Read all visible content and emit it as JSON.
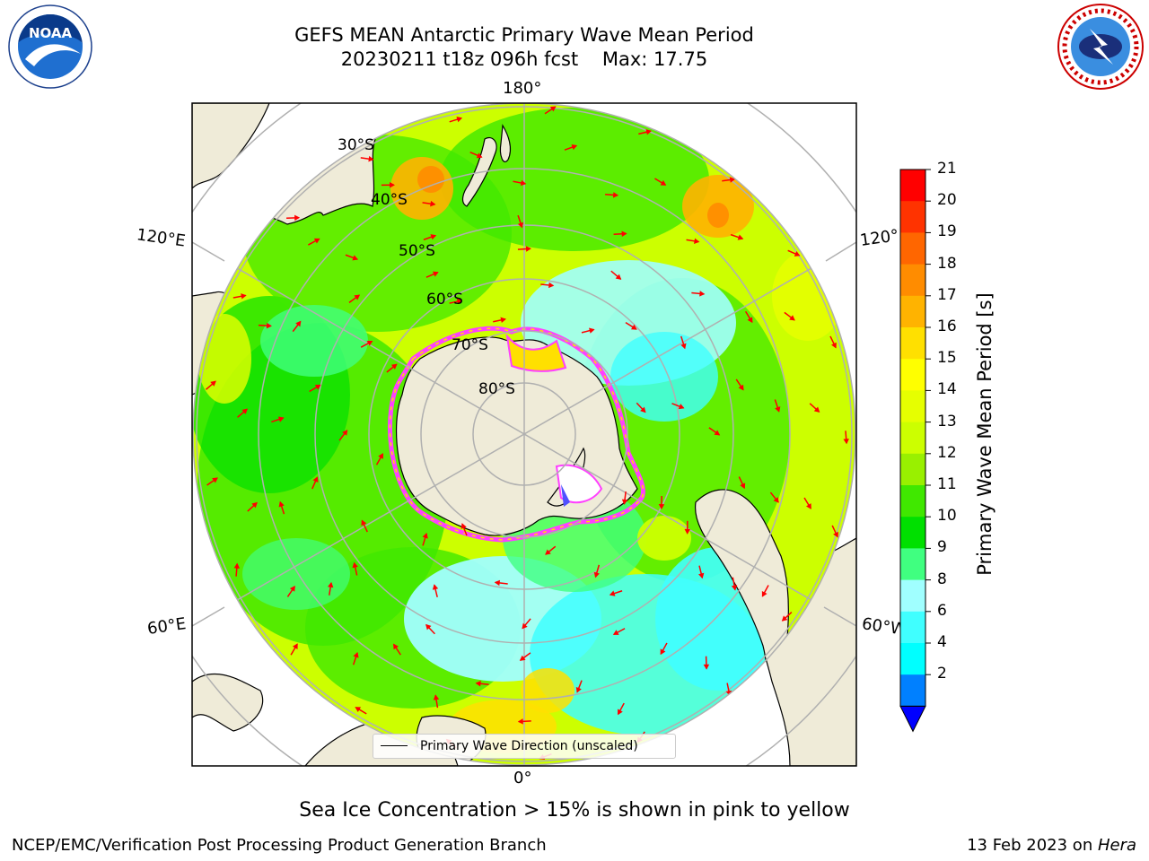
{
  "header": {
    "title_line1": "GEFS MEAN Antarctic Primary Wave Mean Period",
    "title_line2": "20230211 t18z 096h fcst    Max: 17.75"
  },
  "logos": {
    "left": "NOAA",
    "right": "NATIONAL WEATHER SERVICE"
  },
  "map": {
    "longitude_labels": {
      "top": "180°",
      "bottom": "0°",
      "upper_left": "120°E",
      "upper_right": "120°W",
      "lower_left": "60°E",
      "lower_right": "60°W"
    },
    "latitude_labels": [
      "30°S",
      "40°S",
      "50°S",
      "60°S",
      "70°S",
      "80°S"
    ],
    "legend_label": "Primary Wave Direction (unscaled)",
    "arrow_color": "#ff0000",
    "land_color": "#efebd8",
    "grid_color": "#b0b0b0"
  },
  "colorbar": {
    "label": "Primary Wave Mean Period [s]",
    "ticks": [
      "21",
      "20",
      "19",
      "18",
      "17",
      "16",
      "15",
      "14",
      "13",
      "12",
      "11",
      "10",
      "9",
      "8",
      "6",
      "4",
      "2"
    ],
    "colors": [
      "#ff0000",
      "#ff3300",
      "#ff6600",
      "#ff8c00",
      "#ffb300",
      "#ffe000",
      "#ffff00",
      "#e6ff00",
      "#ccff00",
      "#99f000",
      "#40e800",
      "#00e000",
      "#40ff80",
      "#a0ffff",
      "#40ffff",
      "#00ffff",
      "#0080ff"
    ],
    "under_color": "#0000ff"
  },
  "caption": "Sea Ice Concentration > 15% is shown in pink to yellow",
  "footer": {
    "left": "NCEP/EMC/Verification Post Processing Product Generation Branch",
    "right_date": "13 Feb 2023 on ",
    "right_machine": "Hera"
  }
}
